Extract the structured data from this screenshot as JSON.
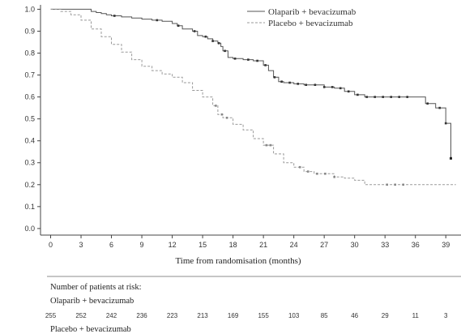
{
  "chart_data": {
    "type": "line",
    "xlabel": "Time from randomisation (months)",
    "ylabel": "",
    "xlim": [
      -1,
      40.5
    ],
    "ylim": [
      -0.03,
      1.02
    ],
    "x_ticks": [
      0,
      3,
      6,
      9,
      12,
      15,
      18,
      21,
      24,
      27,
      30,
      33,
      36,
      39
    ],
    "y_tick_labels": [
      "0.0",
      "0.1",
      "0.2",
      "0.3",
      "0.4",
      "0.5",
      "0.6",
      "0.7",
      "0.8",
      "0.9",
      "1.0"
    ],
    "grid": false,
    "legend_position": "top-right",
    "series": [
      {
        "name": "Olaparib + bevacizumab",
        "color": "#555555",
        "line_style": "solid",
        "x": [
          0,
          1,
          2,
          3,
          4,
          4.5,
          5,
          5.5,
          6,
          7,
          8,
          9,
          10,
          11,
          12,
          12.5,
          13,
          14,
          14.5,
          15,
          15.5,
          16,
          16.5,
          16.8,
          17,
          17.5,
          18,
          19,
          20,
          21,
          21.5,
          22,
          22.5,
          23,
          24,
          25,
          26,
          27,
          28,
          29,
          30,
          31,
          32,
          33,
          34,
          35,
          36,
          36.5,
          37,
          38,
          39,
          39.5
        ],
        "y": [
          1.0,
          1.0,
          1.0,
          1.0,
          0.99,
          0.985,
          0.98,
          0.975,
          0.97,
          0.965,
          0.96,
          0.955,
          0.95,
          0.945,
          0.935,
          0.925,
          0.91,
          0.9,
          0.88,
          0.875,
          0.865,
          0.855,
          0.845,
          0.83,
          0.81,
          0.78,
          0.775,
          0.77,
          0.765,
          0.745,
          0.72,
          0.69,
          0.67,
          0.665,
          0.66,
          0.655,
          0.655,
          0.645,
          0.64,
          0.625,
          0.61,
          0.6,
          0.6,
          0.6,
          0.6,
          0.6,
          0.6,
          0.6,
          0.57,
          0.55,
          0.48,
          0.32
        ],
        "censor_x": [
          6.3,
          10.5,
          12.6,
          14.2,
          15.3,
          16.0,
          16.6,
          17.2,
          18.2,
          19.5,
          20.4,
          21.2,
          22.1,
          22.8,
          23.6,
          24.4,
          25.2,
          26.1,
          27.0,
          27.8,
          28.6,
          29.4,
          30.3,
          31.2,
          32.0,
          32.8,
          33.6,
          34.4,
          35.2,
          37.2,
          38.4,
          39.0,
          39.5
        ]
      },
      {
        "name": "Placebo + bevacizumab",
        "color": "#999999",
        "line_style": "dashed",
        "x": [
          0,
          1,
          2,
          3,
          4,
          5,
          6,
          7,
          8,
          9,
          10,
          11,
          12,
          13,
          14,
          15,
          16,
          16.5,
          17,
          18,
          19,
          20,
          21,
          22,
          23,
          24,
          25,
          26,
          27,
          28,
          29,
          30,
          31,
          32,
          33,
          34,
          35,
          36,
          37,
          38,
          39,
          40
        ],
        "y": [
          1.0,
          0.99,
          0.975,
          0.95,
          0.91,
          0.875,
          0.84,
          0.805,
          0.77,
          0.74,
          0.72,
          0.705,
          0.69,
          0.665,
          0.63,
          0.6,
          0.56,
          0.52,
          0.505,
          0.475,
          0.45,
          0.41,
          0.38,
          0.34,
          0.3,
          0.28,
          0.26,
          0.25,
          0.25,
          0.235,
          0.23,
          0.22,
          0.2,
          0.2,
          0.2,
          0.2,
          0.2,
          0.2,
          0.2,
          0.2,
          0.2,
          0.2
        ],
        "censor_x": [
          16.3,
          16.9,
          17.4,
          21.3,
          21.7,
          24.6,
          25.4,
          26.3,
          27.1,
          28.0,
          33.2,
          34.0,
          34.8
        ]
      }
    ]
  },
  "risk_table": {
    "title": "Number of patients at risk:",
    "groups": [
      {
        "label": "Olaparib + bevacizumab",
        "values": [
          "255",
          "252",
          "242",
          "236",
          "223",
          "213",
          "169",
          "155",
          "103",
          "85",
          "46",
          "29",
          "11",
          "3"
        ]
      },
      {
        "label": "Placebo + bevacizumab",
        "values": []
      }
    ]
  }
}
